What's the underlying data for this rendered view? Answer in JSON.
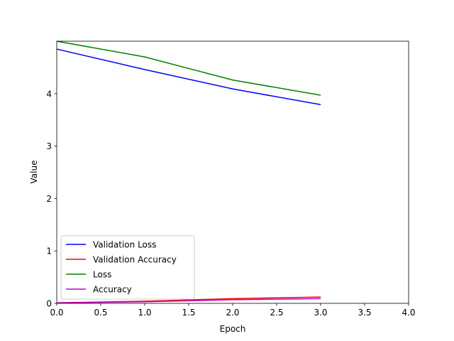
{
  "chart_data": {
    "type": "line",
    "xlabel": "Epoch",
    "ylabel": "Value",
    "xlim": [
      0,
      4
    ],
    "ylim": [
      0,
      5
    ],
    "xticks": [
      "0.0",
      "0.5",
      "1.0",
      "1.5",
      "2.0",
      "2.5",
      "3.0",
      "3.5",
      "4.0"
    ],
    "yticks": [
      "0",
      "1",
      "2",
      "3",
      "4"
    ],
    "grid": false,
    "legend_position": "lower-left",
    "series": [
      {
        "name": "Validation Loss",
        "color": "#0000ff",
        "x": [
          0,
          1,
          2,
          3
        ],
        "y": [
          4.85,
          4.46,
          4.09,
          3.79
        ]
      },
      {
        "name": "Validation Accuracy",
        "color": "#ff0000",
        "x": [
          0,
          1,
          2,
          3
        ],
        "y": [
          0.01,
          0.04,
          0.09,
          0.12
        ]
      },
      {
        "name": "Loss",
        "color": "#008000",
        "x": [
          0,
          1,
          2,
          3
        ],
        "y": [
          5.0,
          4.7,
          4.26,
          3.97
        ]
      },
      {
        "name": "Accuracy",
        "color": "#bf00bf",
        "x": [
          0,
          1,
          2,
          3
        ],
        "y": [
          0.01,
          0.03,
          0.07,
          0.09
        ]
      }
    ]
  }
}
